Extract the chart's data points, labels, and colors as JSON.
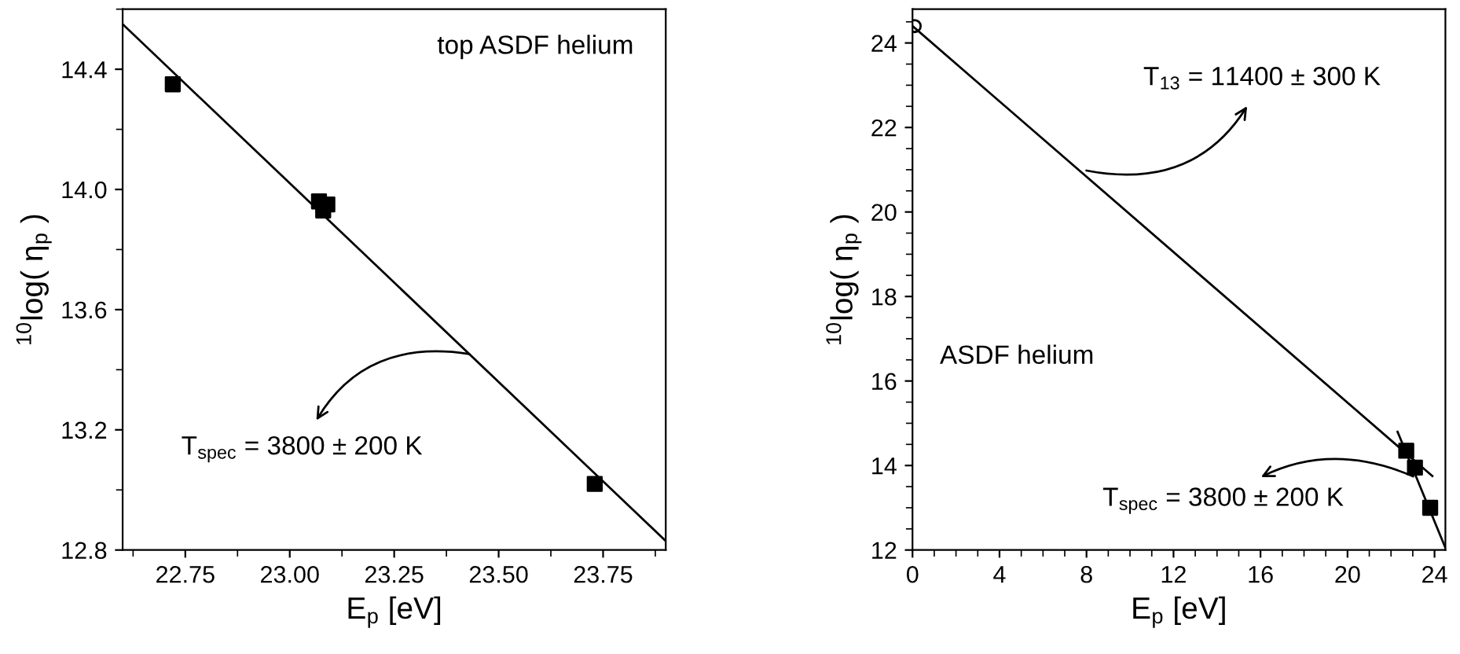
{
  "chart_data": [
    {
      "type": "scatter",
      "xlabel": "E$_{p}$ [eV]",
      "ylabel": "$^{10}$log( η$_{p}$ )",
      "xlim": [
        22.6,
        23.9
      ],
      "ylim": [
        12.8,
        14.6
      ],
      "xticks": [
        22.75,
        {
          "value": 23.0,
          "label": "23.00"
        },
        23.25,
        {
          "value": 23.5,
          "label": "23.50"
        },
        23.75
      ],
      "yticks": [
        12.8,
        13.2,
        13.6,
        {
          "value": 14.0,
          "label": "14.0"
        },
        14.4
      ],
      "grid": false,
      "legend": false,
      "series": [
        {
          "marker": "square",
          "color": "#000000",
          "x": [
            22.72,
            23.07,
            23.08,
            23.09,
            23.73
          ],
          "values": [
            14.35,
            13.96,
            13.93,
            13.95,
            13.02
          ]
        },
        {
          "type": "line",
          "marker": "none",
          "line_style": "solid",
          "color": "#000000",
          "x": [
            22.6,
            23.9
          ],
          "values": [
            14.55,
            12.83
          ]
        }
      ],
      "annotations": [
        "top ASDF helium",
        {
          "text": "T$_{spec}$ = 3800 ± 200 K",
          "x": 23.44,
          "y": 13.45
        }
      ]
    },
    {
      "type": "scatter",
      "xlabel": "E$_{p}$ [eV]",
      "ylabel": "$^{10}$log( η$_{p}$ )",
      "xlim": [
        0,
        24.5
      ],
      "ylim": [
        12,
        24.8
      ],
      "xticks": [
        0,
        4,
        8,
        12,
        16,
        20,
        24
      ],
      "yticks": [
        12,
        14,
        16,
        18,
        20,
        22,
        24
      ],
      "grid": false,
      "legend": false,
      "series": [
        {
          "marker": "square",
          "color": "#000000",
          "x": [
            22.7,
            23.1,
            23.8
          ],
          "values": [
            14.35,
            13.95,
            13.0
          ]
        },
        {
          "marker": "circle",
          "color": "#000000",
          "x": [
            0.1
          ],
          "values": [
            24.4
          ]
        },
        {
          "type": "line",
          "marker": "none",
          "line_style": "solid",
          "color": "#000000",
          "x": [
            0,
            23.9
          ],
          "values": [
            24.4,
            13.75
          ]
        },
        {
          "type": "line",
          "marker": "none",
          "line_style": "solid",
          "color": "#000000",
          "x": [
            22.3,
            24.5
          ],
          "values": [
            14.8,
            12.05
          ]
        }
      ],
      "annotations": [
        {
          "text": "T$_{13}$ = 11400 ± 300 K",
          "x": 7.8,
          "y": 21.0
        },
        "ASDF helium",
        {
          "text": "T$_{spec}$ = 3800 ± 200 K",
          "x": 23.2,
          "y": 13.7
        }
      ]
    }
  ]
}
